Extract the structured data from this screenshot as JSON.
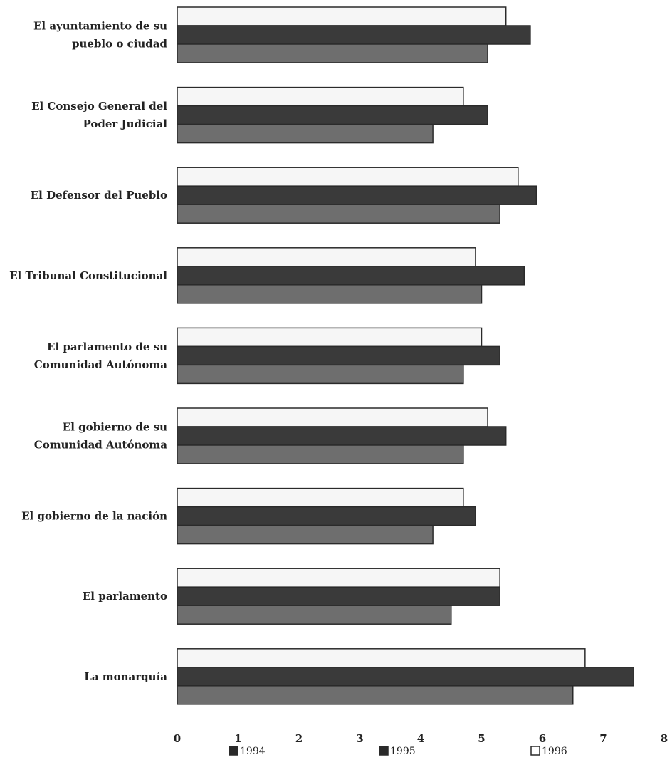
{
  "chart_data": {
    "type": "bar",
    "orientation": "horizontal",
    "categories": [
      [
        "El ayuntamiento de su",
        "pueblo o ciudad"
      ],
      [
        "El Consejo General del",
        "Poder Judicial"
      ],
      [
        "El Defensor del Pueblo"
      ],
      [
        "El Tribunal Constitucional"
      ],
      [
        "El parlamento de su",
        "Comunidad Autónoma"
      ],
      [
        "El gobierno de su",
        "Comunidad Autónoma"
      ],
      [
        "El gobierno de la nación"
      ],
      [
        "El parlamento"
      ],
      [
        "La monarquía"
      ]
    ],
    "series": [
      {
        "name": "1996",
        "color": "#f6f6f6",
        "values": [
          5.4,
          4.7,
          5.6,
          4.9,
          5.0,
          5.1,
          4.7,
          5.3,
          6.7
        ]
      },
      {
        "name": "1995",
        "color": "#3a3a3a",
        "values": [
          5.8,
          5.1,
          5.9,
          5.7,
          5.3,
          5.4,
          4.9,
          5.3,
          7.5
        ]
      },
      {
        "name": "1994",
        "color": "#6e6e6e",
        "values": [
          5.1,
          4.2,
          5.3,
          5.0,
          4.7,
          4.7,
          4.2,
          4.5,
          6.5
        ]
      }
    ],
    "legend_order": [
      "1994",
      "1995",
      "1996"
    ],
    "legend_colors": {
      "1994": "#2a2a2a",
      "1995": "#2a2a2a",
      "1996": "#ffffff"
    },
    "xlim": [
      0,
      8
    ],
    "xticks": [
      "0",
      "1",
      "2",
      "3",
      "4",
      "5",
      "6",
      "7",
      "8"
    ],
    "legend_position": "bottom",
    "grid": false
  }
}
